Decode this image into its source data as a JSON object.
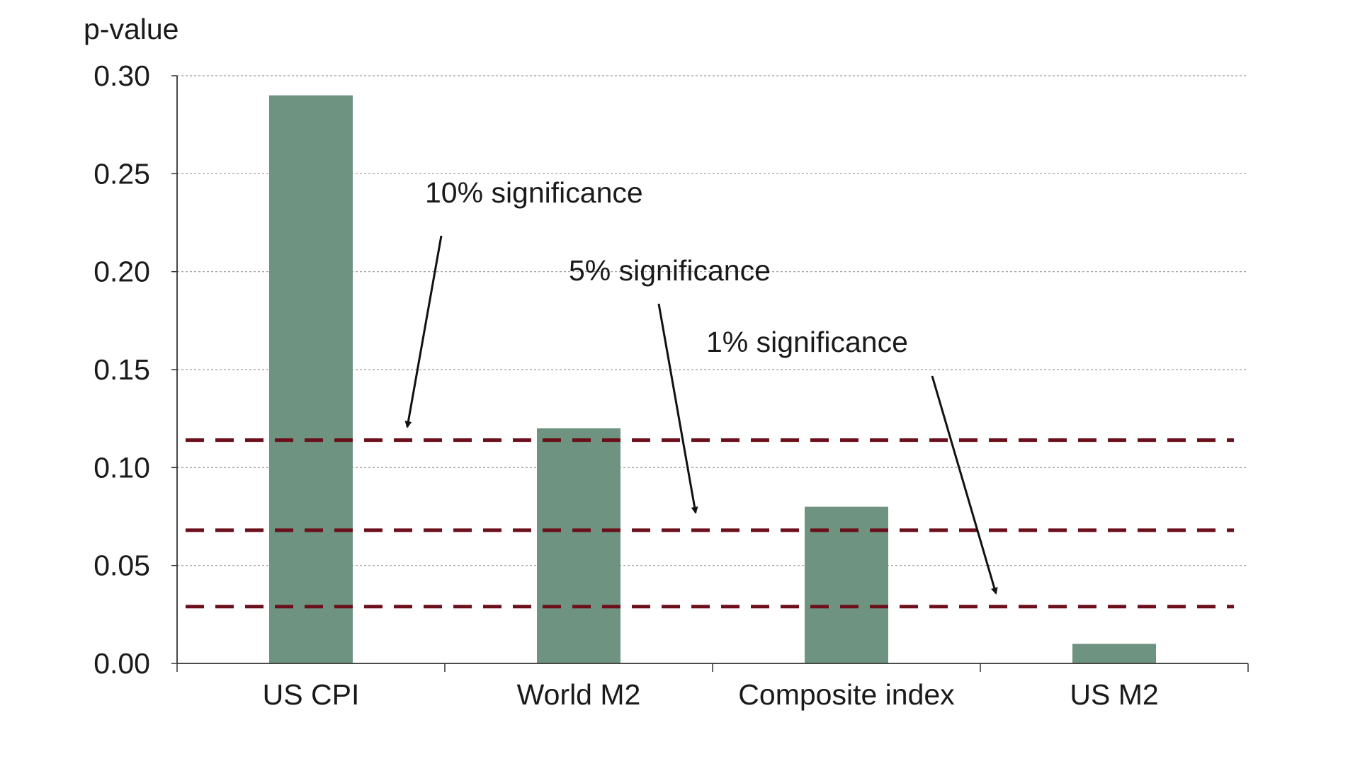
{
  "chart_data": {
    "type": "bar",
    "ylabel": "p-value",
    "xlabel": "",
    "ylim": [
      0,
      0.3
    ],
    "yticks": [
      "0.00",
      "0.05",
      "0.10",
      "0.15",
      "0.20",
      "0.25",
      "0.30"
    ],
    "ytick_values": [
      0,
      0.05,
      0.1,
      0.15,
      0.2,
      0.25,
      0.3
    ],
    "grid": "horizontal dotted",
    "categories": [
      "US CPI",
      "World M2",
      "Composite index",
      "US M2"
    ],
    "values": [
      0.29,
      0.12,
      0.08,
      0.01
    ],
    "thresholds": [
      {
        "label": "10% significance",
        "value": 0.114
      },
      {
        "label": "5% significance",
        "value": 0.068
      },
      {
        "label": "1% significance",
        "value": 0.029
      }
    ],
    "colors": {
      "bar": "#6e9380",
      "threshold": "#6b0f1a",
      "axis": "#333333",
      "grid": "#9a9a9a"
    }
  }
}
